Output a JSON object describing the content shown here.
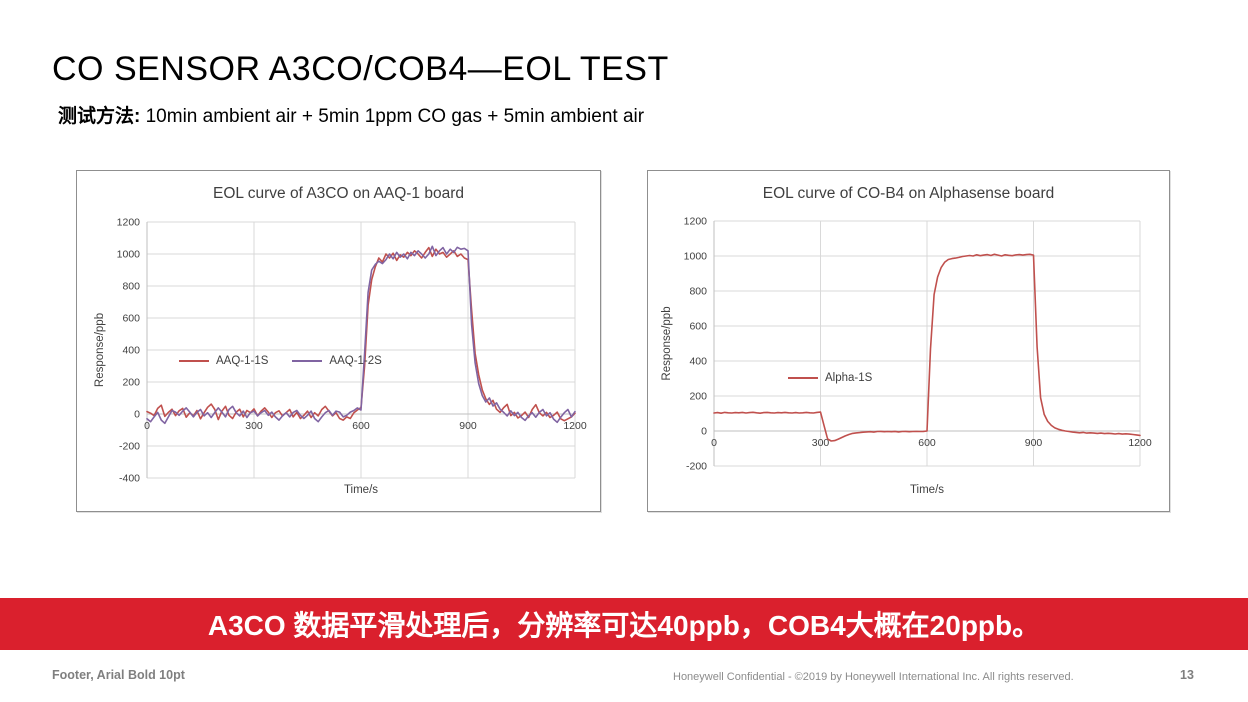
{
  "header": {
    "title": "CO SENSOR A3CO/COB4—EOL TEST",
    "method_label": "测试方法:",
    "method_text": " 10min ambient air + 5min 1ppm CO gas + 5min ambient air"
  },
  "banner": {
    "text": "A3CO 数据平滑处理后，分辨率可达40ppb，COB4大概在20ppb。",
    "bg": "#da202d",
    "fg": "#ffffff"
  },
  "footer": {
    "left": "Footer, Arial Bold 10pt",
    "center": "Honeywell Confidential - ©2019 by Honeywell International Inc. All rights reserved.",
    "page": "13"
  },
  "style_colors": {
    "grid": "#d9d9d9",
    "axis": "#bfbfbf",
    "tick_text": "#3f3f3f"
  },
  "chart_data": [
    {
      "type": "line",
      "title": "EOL curve of A3CO on AAQ-1 board",
      "xlabel": "Time/s",
      "ylabel": "Response/ppb",
      "xlim": [
        0,
        1200
      ],
      "ylim": [
        -400,
        1200
      ],
      "xticks": [
        0,
        300,
        600,
        900,
        1200
      ],
      "yticks": [
        -400,
        -200,
        0,
        200,
        400,
        600,
        800,
        1000,
        1200
      ],
      "grid": true,
      "legend_position": "inside-left",
      "x_step": 10,
      "series": [
        {
          "name": "AAQ-1-1S",
          "color": "#C0504D",
          "values": [
            15,
            5,
            -10,
            35,
            55,
            -15,
            10,
            30,
            -10,
            20,
            35,
            -20,
            8,
            -12,
            22,
            -30,
            8,
            42,
            62,
            28,
            -35,
            18,
            48,
            -8,
            -28,
            12,
            30,
            -18,
            22,
            8,
            32,
            -12,
            18,
            38,
            12,
            -22,
            8,
            20,
            -12,
            8,
            28,
            -18,
            10,
            -28,
            -8,
            18,
            -22,
            8,
            -12,
            28,
            48,
            18,
            -12,
            8,
            -28,
            -38,
            -18,
            -28,
            8,
            25,
            40,
            300,
            680,
            840,
            920,
            975,
            950,
            1000,
            975,
            1005,
            960,
            995,
            980,
            1010,
            990,
            1020,
            1000,
            975,
            1010,
            1040,
            985,
            1030,
            1000,
            1010,
            980,
            1000,
            1020,
            985,
            1000,
            975,
            965,
            650,
            380,
            245,
            150,
            95,
            60,
            85,
            30,
            10,
            40,
            60,
            -10,
            10,
            -25,
            -10,
            12,
            -22,
            28,
            58,
            8,
            -12,
            10,
            -22,
            -8,
            12,
            -30,
            -42,
            -30,
            -18,
            5
          ]
        },
        {
          "name": "AAQ-1-2S",
          "color": "#8064A2",
          "values": [
            -30,
            -48,
            -18,
            10,
            -38,
            -58,
            -18,
            22,
            12,
            -8,
            18,
            38,
            12,
            -18,
            10,
            28,
            -12,
            8,
            -22,
            10,
            38,
            12,
            -18,
            28,
            48,
            8,
            -12,
            18,
            -22,
            8,
            18,
            -12,
            8,
            22,
            -8,
            12,
            -18,
            -38,
            -12,
            8,
            -18,
            10,
            22,
            -8,
            -28,
            -8,
            18,
            -28,
            -48,
            -18,
            8,
            22,
            -8,
            18,
            12,
            -18,
            -8,
            12,
            22,
            38,
            25,
            380,
            760,
            900,
            935,
            955,
            940,
            965,
            1000,
            970,
            1010,
            980,
            1000,
            970,
            1010,
            990,
            1020,
            1000,
            975,
            1000,
            1048,
            990,
            1020,
            1040,
            1000,
            1030,
            1010,
            1042,
            1030,
            1035,
            1020,
            560,
            320,
            190,
            115,
            75,
            100,
            50,
            70,
            30,
            10,
            -12,
            20,
            -10,
            10,
            -22,
            -40,
            -12,
            8,
            -20,
            10,
            28,
            -12,
            8,
            -32,
            -52,
            -20,
            8,
            28,
            -18,
            15
          ]
        }
      ]
    },
    {
      "type": "line",
      "title": "EOL curve of CO-B4 on Alphasense board",
      "xlabel": "Time/s",
      "ylabel": "Response/ppb",
      "xlim": [
        0,
        1200
      ],
      "ylim": [
        -200,
        1200
      ],
      "xticks": [
        0,
        300,
        600,
        900,
        1200
      ],
      "yticks": [
        -200,
        0,
        200,
        400,
        600,
        800,
        1000,
        1200
      ],
      "grid": true,
      "legend_position": "inside-left",
      "x_step": 10,
      "series": [
        {
          "name": "Alpha-1S",
          "color": "#C0504D",
          "values": [
            103,
            105,
            102,
            106,
            104,
            103,
            105,
            104,
            106,
            103,
            105,
            107,
            104,
            102,
            105,
            106,
            104,
            103,
            105,
            104,
            106,
            104,
            103,
            105,
            103,
            104,
            106,
            104,
            103,
            106,
            108,
            30,
            -45,
            -57,
            -55,
            -46,
            -37,
            -28,
            -20,
            -14,
            -11,
            -9,
            -7,
            -5,
            -4,
            -6,
            -3,
            -2,
            -4,
            -3,
            -4,
            -2,
            -5,
            -3,
            -2,
            -4,
            -3,
            -2,
            -3,
            -2,
            0,
            470,
            780,
            880,
            935,
            965,
            980,
            985,
            988,
            992,
            997,
            1000,
            1003,
            1000,
            1007,
            1002,
            1005,
            1008,
            1003,
            1010,
            1005,
            1000,
            1007,
            1004,
            1002,
            1006,
            1008,
            1005,
            1008,
            1010,
            1005,
            480,
            190,
            95,
            55,
            32,
            18,
            10,
            4,
            0,
            -3,
            -6,
            -8,
            -10,
            -8,
            -12,
            -10,
            -12,
            -14,
            -12,
            -15,
            -13,
            -15,
            -17,
            -15,
            -18,
            -16,
            -18,
            -20,
            -22,
            -25
          ]
        }
      ]
    }
  ]
}
